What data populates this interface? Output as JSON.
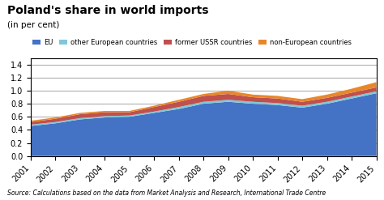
{
  "chart_data": {
    "type": "stacked_area",
    "title": "Poland's share in world imports",
    "subtitle": "(in per cent)",
    "annotations": [
      "Source: Calculations based on the data from Market Analysis and Research, International Trade Centre"
    ],
    "x": [
      2001,
      2002,
      2003,
      2004,
      2005,
      2006,
      2007,
      2008,
      2009,
      2010,
      2011,
      2012,
      2013,
      2014,
      2015
    ],
    "series": [
      {
        "name": "EU",
        "color": "#4472C4",
        "values": [
          0.46,
          0.5,
          0.56,
          0.59,
          0.6,
          0.66,
          0.72,
          0.8,
          0.83,
          0.8,
          0.78,
          0.74,
          0.8,
          0.88,
          0.96
        ]
      },
      {
        "name": "other European countries",
        "color": "#7EC8D8",
        "values": [
          0.02,
          0.02,
          0.02,
          0.02,
          0.02,
          0.02,
          0.03,
          0.03,
          0.03,
          0.03,
          0.03,
          0.03,
          0.03,
          0.03,
          0.03
        ]
      },
      {
        "name": "former USSR countries",
        "color": "#C0504D",
        "values": [
          0.04,
          0.05,
          0.06,
          0.06,
          0.05,
          0.07,
          0.08,
          0.09,
          0.09,
          0.07,
          0.07,
          0.06,
          0.06,
          0.06,
          0.06
        ]
      },
      {
        "name": "non-European countries",
        "color": "#E8872A",
        "values": [
          0.02,
          0.02,
          0.02,
          0.02,
          0.02,
          0.02,
          0.03,
          0.03,
          0.05,
          0.04,
          0.04,
          0.04,
          0.05,
          0.06,
          0.08
        ]
      }
    ],
    "stacked": true,
    "xlim": [
      2001,
      2015
    ],
    "xticks": [
      2001,
      2002,
      2003,
      2004,
      2005,
      2006,
      2007,
      2008,
      2009,
      2010,
      2011,
      2012,
      2013,
      2014,
      2015
    ],
    "ylim": [
      0,
      1.5
    ],
    "yticks": [
      0.0,
      0.2,
      0.4,
      0.6,
      0.8,
      1.0,
      1.2,
      1.4
    ],
    "grid": true
  }
}
